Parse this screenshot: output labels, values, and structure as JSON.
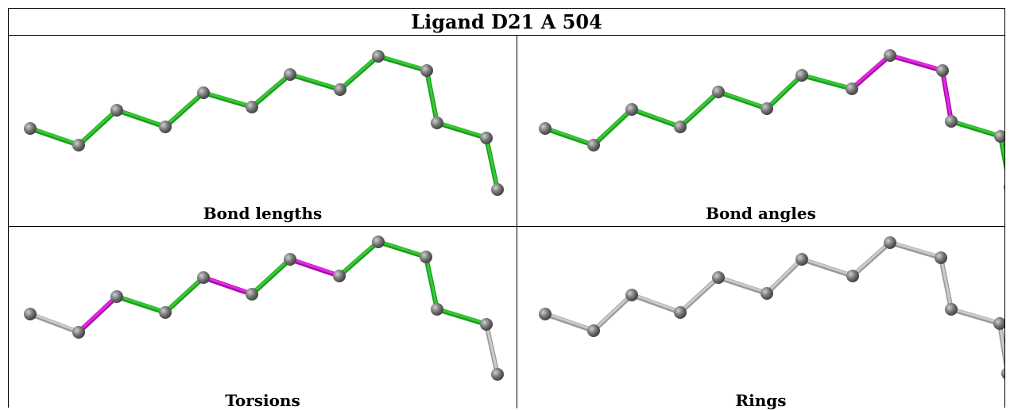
{
  "title": "Ligand D21 A 504",
  "colors": {
    "ok": "#33cc33",
    "outlier": "#ee22ee",
    "none": "#cccccc",
    "atom": "#777777"
  },
  "panels": [
    {
      "label": "Bond lengths",
      "bonds": [
        "ok",
        "ok",
        "ok",
        "ok",
        "ok",
        "ok",
        "ok",
        "ok",
        "ok",
        "ok",
        "ok",
        "ok"
      ]
    },
    {
      "label": "Bond angles",
      "bonds": [
        "ok",
        "ok",
        "ok",
        "ok",
        "ok",
        "ok",
        "ok",
        "outlier",
        "outlier",
        "outlier",
        "ok",
        "ok"
      ]
    },
    {
      "label": "Torsions",
      "bonds": [
        "none",
        "outlier",
        "ok",
        "ok",
        "outlier",
        "ok",
        "outlier",
        "ok",
        "ok",
        "ok",
        "ok",
        "none"
      ]
    },
    {
      "label": "Rings",
      "bonds": [
        "none",
        "none",
        "none",
        "none",
        "none",
        "none",
        "none",
        "none",
        "none",
        "none",
        "none",
        "none"
      ]
    }
  ]
}
